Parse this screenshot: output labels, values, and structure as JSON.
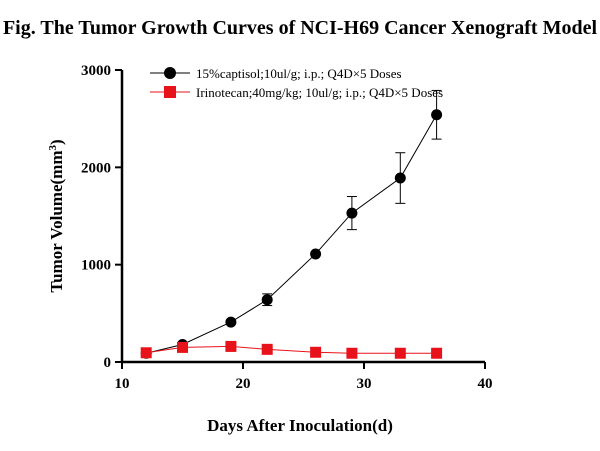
{
  "chart_data": {
    "type": "line",
    "title": "Fig. The Tumor Growth Curves of NCI-H69 Cancer Xenograft Model",
    "xlabel": "Days After Inoculation(d)",
    "ylabel_main": "Tumor Volume(mm",
    "ylabel_sup": "3",
    "ylabel_close": ")",
    "xlim": [
      10,
      40
    ],
    "ylim": [
      0,
      3000
    ],
    "xticks": [
      10,
      20,
      30,
      40
    ],
    "yticks": [
      0,
      1000,
      2000,
      3000
    ],
    "grid": false,
    "legend_position": "top-left",
    "series": [
      {
        "name": "15%captisol;10ul/g; i.p.; Q4D×5 Doses",
        "marker": "circle",
        "color": "#000000",
        "line_color": "#000000",
        "x": [
          12,
          15,
          19,
          22,
          26,
          29,
          33,
          36
        ],
        "y": [
          90,
          180,
          410,
          640,
          1110,
          1530,
          1890,
          2540
        ],
        "error": [
          0,
          20,
          20,
          60,
          0,
          170,
          260,
          250
        ]
      },
      {
        "name": "Irinotecan;40mg/kg; 10ul/g; i.p.; Q4D×5 Doses",
        "marker": "square",
        "color": "#e8131a",
        "line_color": "#e8131a",
        "x": [
          12,
          15,
          19,
          22,
          26,
          29,
          33,
          36
        ],
        "y": [
          95,
          150,
          160,
          130,
          100,
          90,
          90,
          90
        ],
        "error": [
          0,
          10,
          30,
          20,
          0,
          0,
          0,
          0
        ]
      }
    ]
  }
}
